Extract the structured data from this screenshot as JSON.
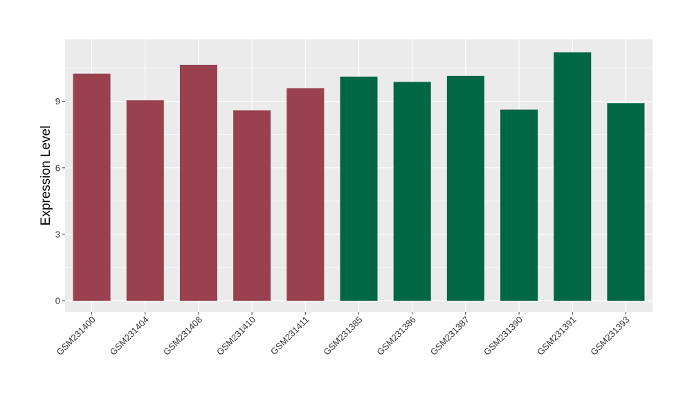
{
  "chart_data": {
    "type": "bar",
    "title": "",
    "xlabel": "",
    "ylabel": "Expression Level",
    "ylim": [
      -0.5,
      11.8
    ],
    "yticks": [
      0,
      3,
      6,
      9
    ],
    "grid": true,
    "categories": [
      "GSM231400",
      "GSM231404",
      "GSM231408",
      "GSM231410",
      "GSM231411",
      "GSM231385",
      "GSM231386",
      "GSM231387",
      "GSM231390",
      "GSM231391",
      "GSM231393"
    ],
    "values": [
      10.25,
      9.05,
      10.65,
      8.6,
      9.6,
      10.12,
      9.88,
      10.15,
      8.63,
      11.22,
      8.92
    ],
    "bar_colors": [
      "#99414f",
      "#99414f",
      "#99414f",
      "#99414f",
      "#99414f",
      "#006744",
      "#006744",
      "#006744",
      "#006744",
      "#006744",
      "#006744"
    ],
    "panel_background": "#ebebeb",
    "grid_color": "#ffffff"
  }
}
